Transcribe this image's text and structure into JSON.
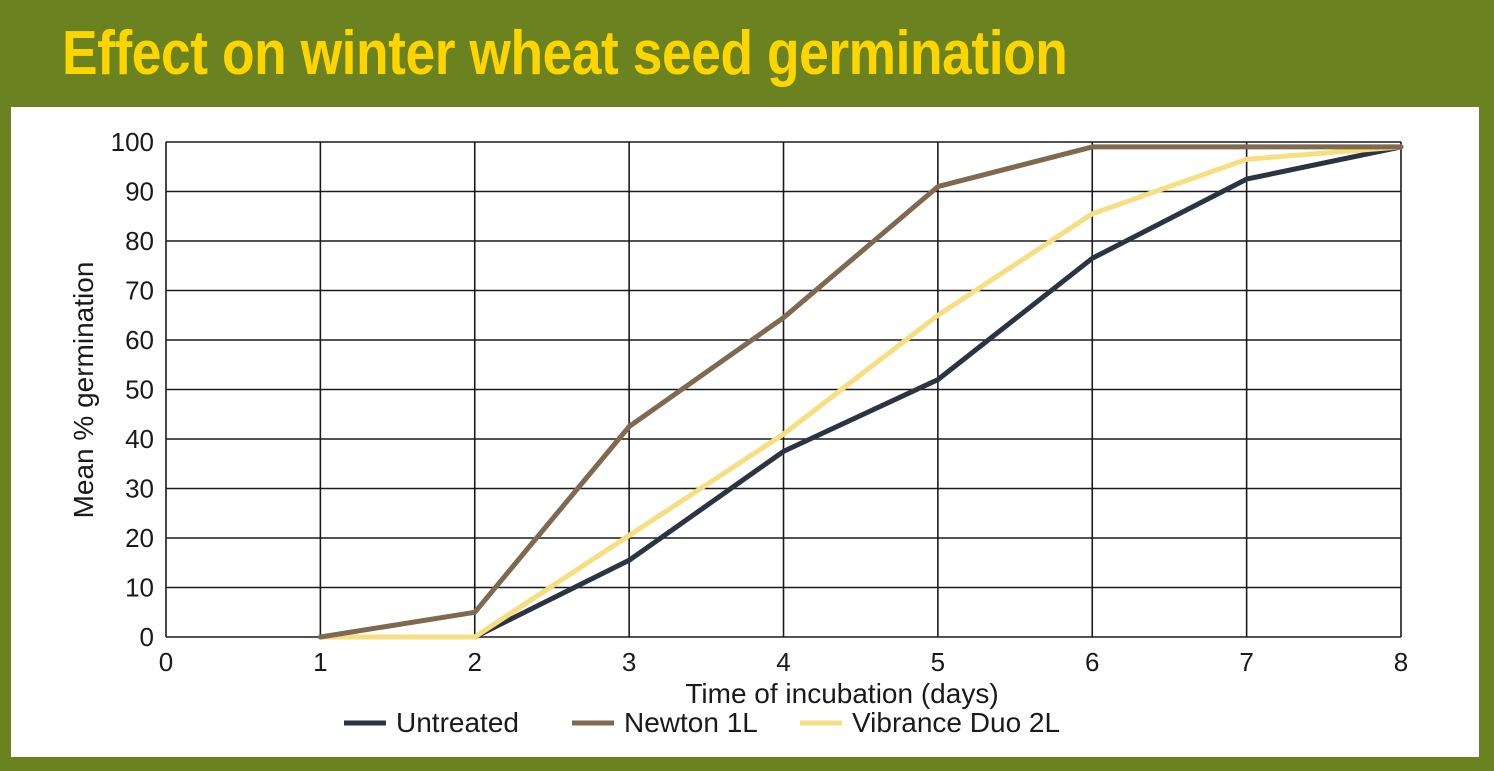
{
  "title": "Effect on winter wheat seed germination",
  "colors": {
    "frame": "#6b8221",
    "title": "#ffd500",
    "untreated": "#2b3440",
    "newton": "#7f6a50",
    "vibrance": "#f7de80",
    "grid": "#1a1a1a"
  },
  "chart_data": {
    "type": "line",
    "title": "Effect on winter wheat seed germination",
    "xlabel": "Time of incubation (days)",
    "ylabel": "Mean % germination",
    "xlim": [
      0,
      8
    ],
    "ylim": [
      0,
      100
    ],
    "x_ticks": [
      "0",
      "1",
      "2",
      "3",
      "4",
      "5",
      "6",
      "7",
      "8"
    ],
    "y_ticks": [
      "0",
      "10",
      "20",
      "30",
      "40",
      "50",
      "60",
      "70",
      "80",
      "90",
      "100"
    ],
    "grid": true,
    "legend_position": "bottom",
    "x": [
      1,
      2,
      3,
      4,
      5,
      6,
      7,
      8
    ],
    "series": [
      {
        "name": "Untreated",
        "color": "#2b3440",
        "values": [
          0,
          0,
          15.5,
          37.5,
          52,
          76.5,
          92.5,
          99
        ]
      },
      {
        "name": "Newton 1L",
        "color": "#7f6a50",
        "values": [
          0,
          5,
          42.5,
          64.5,
          91,
          99,
          99,
          99
        ]
      },
      {
        "name": "Vibrance Duo 2L",
        "color": "#f7de80",
        "values": [
          0,
          0,
          20.5,
          41,
          65,
          85.5,
          96.5,
          99
        ]
      }
    ]
  }
}
